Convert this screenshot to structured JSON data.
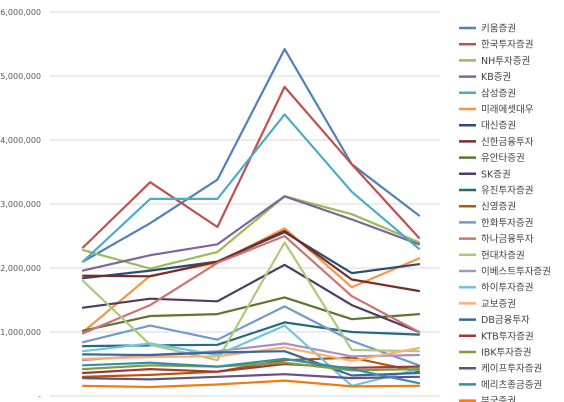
{
  "chart_data": {
    "type": "line",
    "title": "",
    "xlabel": "",
    "ylabel": "",
    "ylim": [
      0,
      6000000
    ],
    "yticks": [
      0,
      1000000,
      2000000,
      3000000,
      4000000,
      5000000,
      6000000
    ],
    "ytick_labels": [
      "-",
      "1,000,000",
      "2,000,000",
      "3,000,000",
      "4,000,000",
      "5,000,000",
      "6,000,000"
    ],
    "categories": [
      "",
      "",
      "",
      "",
      "",
      ""
    ],
    "grid": true,
    "legend_position": "right",
    "series": [
      {
        "name": "키움증권",
        "color": "#4f81bd",
        "values": [
          2100000,
          2700000,
          3380000,
          5420000,
          3620000,
          2820000
        ]
      },
      {
        "name": "한국투자증권",
        "color": "#c0504d",
        "values": [
          2320000,
          3340000,
          2640000,
          4830000,
          3620000,
          2470000
        ]
      },
      {
        "name": "NH투자증권",
        "color": "#9bbb59",
        "values": [
          2280000,
          1990000,
          2250000,
          3120000,
          2840000,
          2400000
        ]
      },
      {
        "name": "KB증권",
        "color": "#8064a2",
        "values": [
          1960000,
          2200000,
          2370000,
          3120000,
          2760000,
          2370000
        ]
      },
      {
        "name": "삼성증권",
        "color": "#4bacc6",
        "values": [
          2100000,
          3080000,
          3080000,
          4400000,
          3190000,
          2300000
        ]
      },
      {
        "name": "미래에셋대우",
        "color": "#f79646",
        "values": [
          1000000,
          1880000,
          2080000,
          2620000,
          1700000,
          2150000
        ]
      },
      {
        "name": "대신증권",
        "color": "#2c4d75",
        "values": [
          1840000,
          1960000,
          2100000,
          2560000,
          1920000,
          2060000
        ]
      },
      {
        "name": "신한금융투자",
        "color": "#772c2a",
        "values": [
          1880000,
          1870000,
          2100000,
          2580000,
          1820000,
          1640000
        ]
      },
      {
        "name": "유안타증권",
        "color": "#5f7530",
        "values": [
          1020000,
          1250000,
          1280000,
          1540000,
          1200000,
          1280000
        ]
      },
      {
        "name": "SK증권",
        "color": "#4d3b62",
        "values": [
          1380000,
          1520000,
          1480000,
          2050000,
          1420000,
          1000000
        ]
      },
      {
        "name": "유진투자증권",
        "color": "#276a7c",
        "values": [
          780000,
          790000,
          800000,
          1150000,
          1000000,
          960000
        ]
      },
      {
        "name": "신영증권",
        "color": "#b65708",
        "values": [
          300000,
          330000,
          380000,
          560000,
          600000,
          380000
        ]
      },
      {
        "name": "한화투자증권",
        "color": "#729aca",
        "values": [
          840000,
          1100000,
          880000,
          1400000,
          860000,
          480000
        ]
      },
      {
        "name": "하나금융투자",
        "color": "#cd7371",
        "values": [
          980000,
          1420000,
          2080000,
          2500000,
          1560000,
          1000000
        ]
      },
      {
        "name": "현대차증권",
        "color": "#afc97a",
        "values": [
          1800000,
          800000,
          560000,
          2400000,
          720000,
          700000
        ]
      },
      {
        "name": "이베스트투자증권",
        "color": "#a992c0",
        "values": [
          560000,
          640000,
          700000,
          820000,
          620000,
          640000
        ]
      },
      {
        "name": "하이투자증권",
        "color": "#6fc5db",
        "values": [
          700000,
          820000,
          640000,
          1100000,
          160000,
          420000
        ]
      },
      {
        "name": "교보증권",
        "color": "#f9b074",
        "values": [
          580000,
          610000,
          620000,
          760000,
          550000,
          750000
        ]
      },
      {
        "name": "DB금융투자",
        "color": "#3a679c",
        "values": [
          650000,
          640000,
          680000,
          700000,
          320000,
          360000
        ]
      },
      {
        "name": "KTB투자증권",
        "color": "#9e3b38",
        "values": [
          360000,
          420000,
          380000,
          500000,
          440000,
          460000
        ]
      },
      {
        "name": "IBK투자증권",
        "color": "#7e9d40",
        "values": [
          420000,
          480000,
          460000,
          520000,
          400000,
          420000
        ]
      },
      {
        "name": "케이프투자증권",
        "color": "#664f82",
        "values": [
          280000,
          260000,
          300000,
          340000,
          280000,
          300000
        ]
      },
      {
        "name": "메리츠종금증권",
        "color": "#358ea6",
        "values": [
          480000,
          520000,
          460000,
          580000,
          420000,
          200000
        ]
      },
      {
        "name": "부국증권",
        "color": "#f07b11",
        "values": [
          160000,
          140000,
          180000,
          240000,
          150000,
          160000
        ]
      }
    ]
  }
}
